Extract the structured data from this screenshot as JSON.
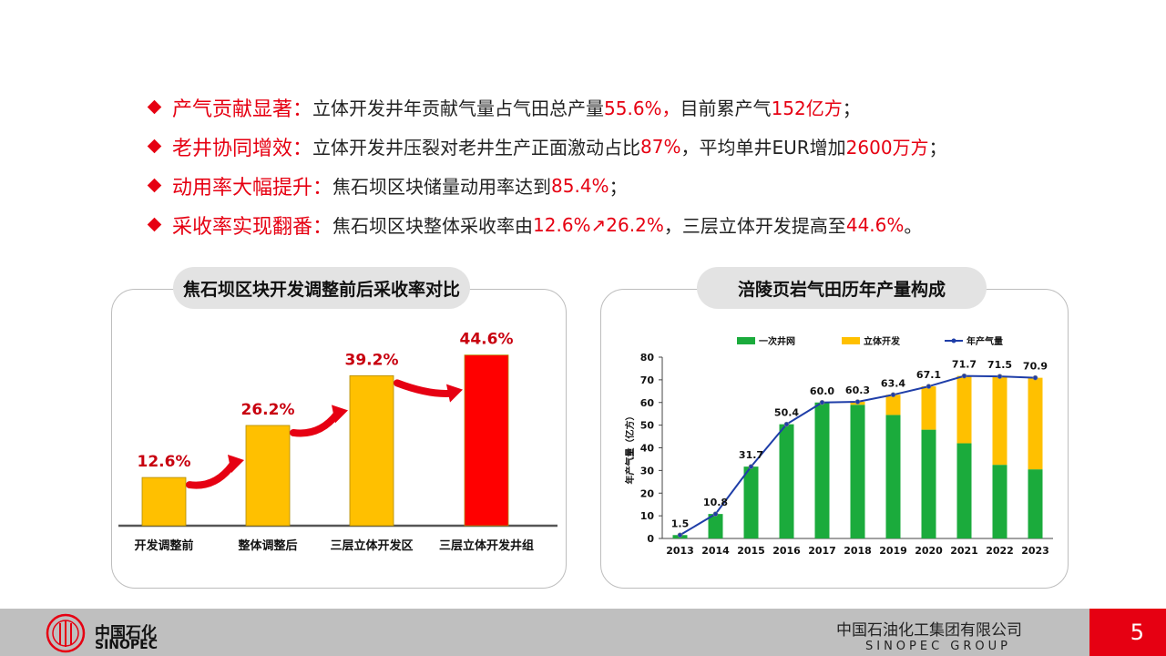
{
  "bullets": [
    {
      "kw": "产气贡献显著：",
      "p1": "立体开发井年贡献气量占气田总产量",
      "r1": "55.6%，",
      "p2": "目前累产气",
      "r2": "152亿方",
      "p3": "；"
    },
    {
      "kw": "老井协同增效：",
      "p1": "立体开发井压裂对老井生产正面激动占比",
      "r1": "87%",
      "p2": "，平均单井EUR增加",
      "r2": "2600万方",
      "p3": "；"
    },
    {
      "kw": "动用率大幅提升：",
      "p1": "焦石坝区块储量动用率达到",
      "r1": "85.4%",
      "p2": "；",
      "r2": "",
      "p3": ""
    },
    {
      "kw": "采收率实现翻番：",
      "p1": "焦石坝区块整体采收率由",
      "r1": "12.6%↗26.2%",
      "p2": "，三层立体开发提高至",
      "r2": "44.6%",
      "p3": "。"
    }
  ],
  "left_panel": {
    "title": "焦石坝区块开发调整前后采收率对比"
  },
  "right_panel": {
    "title": "涪陵页岩气田历年产量构成"
  },
  "chart_data": [
    {
      "type": "bar",
      "title": "焦石坝区块开发调整前后采收率对比",
      "categories": [
        "开发调整前",
        "整体调整后",
        "三层立体开发区",
        "三层立体开发井组"
      ],
      "values": [
        12.6,
        26.2,
        39.2,
        44.6
      ],
      "value_labels": [
        "12.6%",
        "26.2%",
        "39.2%",
        "44.6%"
      ],
      "colors": [
        "#ffc000",
        "#ffc000",
        "#ffc000",
        "#ff0000"
      ],
      "ylim": [
        0,
        50
      ]
    },
    {
      "type": "bar",
      "title": "涪陵页岩气田历年产量构成",
      "ylabel": "年产气量（亿方）",
      "categories": [
        "2013",
        "2014",
        "2015",
        "2016",
        "2017",
        "2018",
        "2019",
        "2020",
        "2021",
        "2022",
        "2023"
      ],
      "series": [
        {
          "name": "一次井网",
          "values": [
            1.5,
            10.8,
            31.7,
            50.4,
            60.0,
            59.0,
            54.5,
            48.0,
            42.0,
            32.5,
            30.5
          ],
          "color": "#1bab3c"
        },
        {
          "name": "立体开发",
          "values": [
            0,
            0,
            0,
            0,
            0,
            1.3,
            8.9,
            19.1,
            29.7,
            39.0,
            40.4
          ],
          "color": "#ffc000"
        }
      ],
      "line": {
        "name": "年产气量",
        "values": [
          1.5,
          10.8,
          31.7,
          50.4,
          60.0,
          60.3,
          63.4,
          67.1,
          71.7,
          71.5,
          70.9
        ],
        "labels": [
          "1.5",
          "10.8",
          "31.7",
          "50.4",
          "60.0",
          "60.3",
          "63.4",
          "67.1",
          "71.7",
          "71.5",
          "70.9"
        ],
        "color": "#1f3ea8"
      },
      "ylim": [
        0,
        80
      ],
      "yticks": [
        "0",
        "10",
        "20",
        "30",
        "40",
        "50",
        "60",
        "70",
        "80"
      ],
      "legend": "top"
    }
  ],
  "footer": {
    "logo_cn": "中国石化",
    "logo_en": "SINOPEC",
    "company_cn": "中国石油化工集团有限公司",
    "company_en": "SINOPEC GROUP",
    "page": "5"
  }
}
